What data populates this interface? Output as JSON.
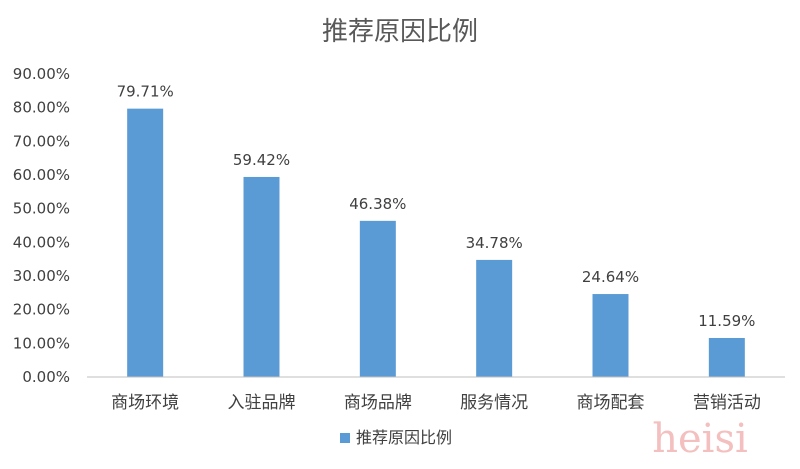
{
  "chart_data": {
    "type": "bar",
    "title": "推荐原因比例",
    "categories": [
      "商场环境",
      "入驻品牌",
      "商场品牌",
      "服务情况",
      "商场配套",
      "营销活动"
    ],
    "series": [
      {
        "name": "推荐原因比例",
        "values": [
          79.71,
          59.42,
          46.38,
          34.78,
          24.64,
          11.59
        ],
        "data_labels": [
          "79.71%",
          "59.42%",
          "46.38%",
          "34.78%",
          "24.64%",
          "11.59%"
        ]
      }
    ],
    "y_ticks": [
      "0.00%",
      "10.00%",
      "20.00%",
      "30.00%",
      "40.00%",
      "50.00%",
      "60.00%",
      "70.00%",
      "80.00%",
      "90.00%"
    ],
    "ylim": [
      0,
      90
    ],
    "ytick_step": 10,
    "xlabel": "",
    "ylabel": "",
    "grid": false,
    "legend": "bottom",
    "colors": {
      "bar": "#5B9BD5",
      "axis": "#BFBFBF"
    }
  },
  "watermark": "heisi"
}
